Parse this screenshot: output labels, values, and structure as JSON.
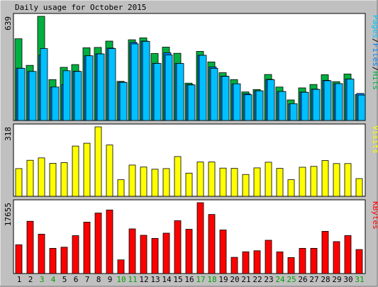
{
  "title": "Daily usage for October 2015",
  "colors": {
    "background": "#c0c0c0",
    "plot_bg": "#ffffff",
    "hits": "#00b040",
    "files": "#0080ff",
    "pages": "#00c0ff",
    "visits": "#ffff00",
    "kbytes": "#ff0000",
    "weekday_label": "#000000",
    "weekend_label": "#00a000"
  },
  "chart_data": [
    {
      "type": "bar",
      "panel": "top",
      "max_label": "639",
      "ylim": [
        0,
        639
      ],
      "right_label_parts": [
        {
          "text": "Pages",
          "color": "#00c0ff"
        },
        {
          "text": "/",
          "color": "#000000"
        },
        {
          "text": "Files",
          "color": "#0080ff"
        },
        {
          "text": "/",
          "color": "#000000"
        },
        {
          "text": "Hits",
          "color": "#00b040"
        }
      ],
      "categories": [
        "1",
        "2",
        "3",
        "4",
        "5",
        "6",
        "7",
        "8",
        "9",
        "10",
        "11",
        "12",
        "13",
        "14",
        "15",
        "16",
        "17",
        "18",
        "19",
        "20",
        "21",
        "22",
        "23",
        "24",
        "25",
        "26",
        "27",
        "28",
        "29",
        "30",
        "31"
      ],
      "series": [
        {
          "name": "Hits",
          "color": "#00b040",
          "values": [
            501,
            338,
            639,
            251,
            326,
            343,
            446,
            448,
            487,
            240,
            495,
            507,
            411,
            450,
            412,
            229,
            424,
            359,
            293,
            251,
            175,
            190,
            282,
            205,
            126,
            200,
            221,
            281,
            238,
            285,
            159
          ]
        },
        {
          "name": "Files",
          "color": "#0080ff",
          "values": [
            321,
            301,
            401,
            204,
            219,
            302,
            397,
            409,
            444,
            235,
            479,
            487,
            351,
            415,
            350,
            220,
            400,
            328,
            272,
            222,
            164,
            182,
            252,
            178,
            101,
            174,
            192,
            246,
            226,
            254,
            166
          ]
        },
        {
          "name": "Pages",
          "color": "#00c0ff",
          "values": [
            320,
            301,
            441,
            205,
            305,
            301,
            397,
            408,
            441,
            234,
            470,
            485,
            350,
            402,
            350,
            218,
            400,
            320,
            271,
            225,
            158,
            182,
            250,
            178,
            103,
            173,
            191,
            244,
            226,
            254,
            156
          ]
        }
      ]
    },
    {
      "type": "bar",
      "panel": "middle",
      "max_label": "318",
      "ylim": [
        0,
        318
      ],
      "right_label_parts": [
        {
          "text": "Visits",
          "color": "#ffff00"
        }
      ],
      "categories": [
        "1",
        "2",
        "3",
        "4",
        "5",
        "6",
        "7",
        "8",
        "9",
        "10",
        "11",
        "12",
        "13",
        "14",
        "15",
        "16",
        "17",
        "18",
        "19",
        "20",
        "21",
        "22",
        "23",
        "24",
        "25",
        "26",
        "27",
        "28",
        "29",
        "30",
        "31"
      ],
      "series": [
        {
          "name": "Visits",
          "color": "#ffff00",
          "values": [
            127,
            165,
            176,
            151,
            154,
            230,
            243,
            318,
            235,
            76,
            143,
            134,
            124,
            127,
            182,
            106,
            157,
            157,
            129,
            128,
            100,
            130,
            156,
            128,
            76,
            133,
            137,
            164,
            150,
            150,
            81
          ]
        }
      ]
    },
    {
      "type": "bar",
      "panel": "bottom",
      "max_label": "17655",
      "ylim": [
        0,
        17655
      ],
      "right_label_parts": [
        {
          "text": "KBytes",
          "color": "#ff0000"
        }
      ],
      "categories": [
        "1",
        "2",
        "3",
        "4",
        "5",
        "6",
        "7",
        "8",
        "9",
        "10",
        "11",
        "12",
        "13",
        "14",
        "15",
        "16",
        "17",
        "18",
        "19",
        "20",
        "21",
        "22",
        "23",
        "24",
        "25",
        "26",
        "27",
        "28",
        "29",
        "30",
        "31"
      ],
      "series": [
        {
          "name": "KBytes",
          "color": "#ff0000",
          "values": [
            7170,
            13037,
            9814,
            6280,
            6563,
            9450,
            12825,
            15086,
            15838,
            3413,
            11126,
            9528,
            8761,
            10057,
            13174,
            11026,
            17655,
            14732,
            10852,
            4050,
            5419,
            5685,
            8296,
            5401,
            3990,
            6280,
            6280,
            10530,
            7960,
            9462,
            5981
          ]
        }
      ]
    }
  ],
  "day_labels": [
    {
      "text": "1",
      "weekend": false
    },
    {
      "text": "2",
      "weekend": false
    },
    {
      "text": "3",
      "weekend": true
    },
    {
      "text": "4",
      "weekend": true
    },
    {
      "text": "5",
      "weekend": false
    },
    {
      "text": "6",
      "weekend": false
    },
    {
      "text": "7",
      "weekend": false
    },
    {
      "text": "8",
      "weekend": false
    },
    {
      "text": "9",
      "weekend": false
    },
    {
      "text": "10",
      "weekend": true
    },
    {
      "text": "11",
      "weekend": true
    },
    {
      "text": "12",
      "weekend": false
    },
    {
      "text": "13",
      "weekend": false
    },
    {
      "text": "14",
      "weekend": false
    },
    {
      "text": "15",
      "weekend": false
    },
    {
      "text": "16",
      "weekend": false
    },
    {
      "text": "17",
      "weekend": true
    },
    {
      "text": "18",
      "weekend": true
    },
    {
      "text": "19",
      "weekend": false
    },
    {
      "text": "20",
      "weekend": false
    },
    {
      "text": "21",
      "weekend": false
    },
    {
      "text": "22",
      "weekend": false
    },
    {
      "text": "23",
      "weekend": false
    },
    {
      "text": "24",
      "weekend": true
    },
    {
      "text": "25",
      "weekend": true
    },
    {
      "text": "26",
      "weekend": false
    },
    {
      "text": "27",
      "weekend": false
    },
    {
      "text": "28",
      "weekend": false
    },
    {
      "text": "29",
      "weekend": false
    },
    {
      "text": "30",
      "weekend": false
    },
    {
      "text": "31",
      "weekend": true
    }
  ]
}
